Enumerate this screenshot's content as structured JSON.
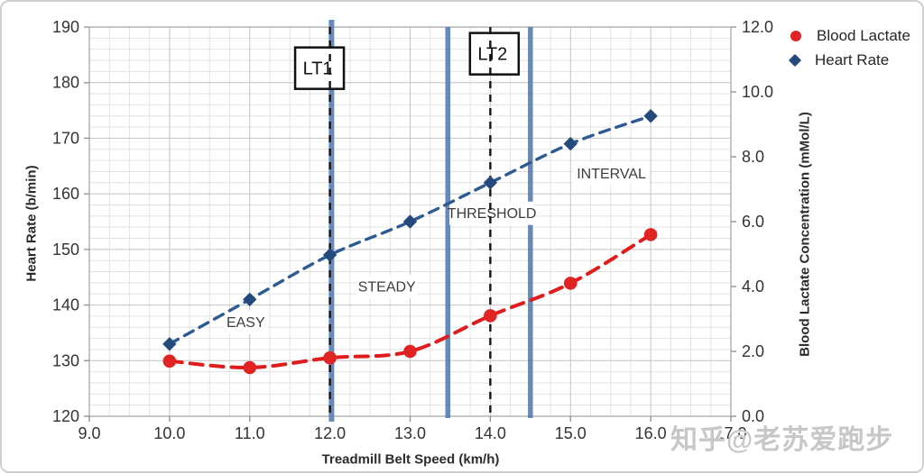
{
  "watermark": "知乎@老苏爱跑步",
  "axes": {
    "x_title": "Treadmill Belt Speed (km/h)",
    "left_title": "Heart Rate (b/min)",
    "right_title": "Blood Lactate Concentration (mMol/L)"
  },
  "chart_data": {
    "type": "line",
    "title": "",
    "xlabel": "Treadmill Belt Speed (km/h)",
    "ylabel_left": "Heart Rate (b/min)",
    "ylabel_right": "Blood Lactate Concentration (mMol/L)",
    "x": [
      10,
      11,
      12,
      13,
      14,
      15,
      16
    ],
    "series": [
      {
        "name": "Blood Lactate",
        "axis": "right",
        "marker": "circle",
        "color": "#e02323",
        "line_color": "#e01c1c",
        "values": [
          1.7,
          1.5,
          1.8,
          2.0,
          3.1,
          4.1,
          5.6
        ]
      },
      {
        "name": "Heart Rate",
        "axis": "left",
        "marker": "diamond",
        "color": "#24497c",
        "line_color": "#2e5b8f",
        "values": [
          133,
          141,
          149,
          155,
          162,
          169,
          174
        ]
      }
    ],
    "x_axis": {
      "min": 9,
      "max": 17,
      "step": 1,
      "minor_step": 0.25,
      "decimals": 1
    },
    "left_axis": {
      "min": 120,
      "max": 190,
      "step": 10,
      "minor_step": 2,
      "decimals": 0
    },
    "right_axis": {
      "min": 0,
      "max": 12,
      "step": 2,
      "decimals": 1
    },
    "grid": true,
    "legend_position": "top-right",
    "threshold_lines": {
      "solid": {
        "color": "#567fb4",
        "positions": [
          12.02,
          13.47,
          14.5
        ]
      },
      "dashed": {
        "color": "#141414",
        "positions": [
          12.0,
          14.0
        ]
      }
    },
    "annotations": [
      {
        "text": "LT1",
        "x": 11.87,
        "hr": 182.6,
        "style": "boxed"
      },
      {
        "text": "LT2",
        "x": 14.05,
        "hr": 185.2,
        "style": "boxed"
      },
      {
        "text": "EASY",
        "x": 10.95,
        "hr": 136.9,
        "style": "zone"
      },
      {
        "text": "STEADY",
        "x": 12.71,
        "hr": 143.3,
        "style": "zone"
      },
      {
        "text": "THRESHOLD",
        "x": 14.02,
        "hr": 156.5,
        "style": "zone"
      },
      {
        "text": "INTERVAL",
        "x": 15.51,
        "hr": 163.7,
        "style": "zone"
      }
    ]
  }
}
